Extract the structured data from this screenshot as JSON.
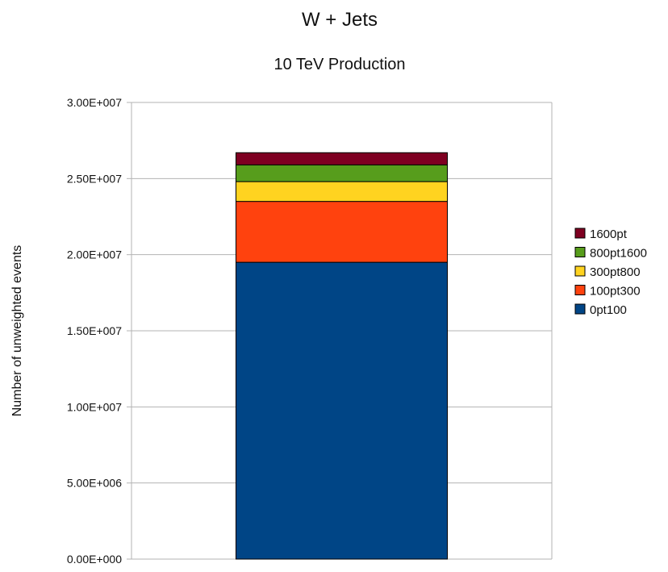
{
  "chart_data": {
    "type": "bar",
    "stacked": true,
    "title": "W + Jets",
    "subtitle": "10 TeV Production",
    "xlabel": "",
    "ylabel": "Number of unweighted events",
    "ylim": [
      0,
      30000000
    ],
    "yticks": [
      0,
      5000000,
      10000000,
      15000000,
      20000000,
      25000000,
      30000000
    ],
    "ytick_labels": [
      "0.00E+000",
      "5.00E+006",
      "1.00E+007",
      "1.50E+007",
      "2.00E+007",
      "2.50E+007",
      "3.00E+007"
    ],
    "categories": [
      ""
    ],
    "grid": {
      "horizontal": true,
      "vertical": false
    },
    "legend": {
      "position": "right"
    },
    "series": [
      {
        "name": "0pt100",
        "values": [
          19500000
        ],
        "color": "#004586"
      },
      {
        "name": "100pt300",
        "values": [
          4000000
        ],
        "color": "#ff420e"
      },
      {
        "name": "300pt800",
        "values": [
          1300000
        ],
        "color": "#ffd320"
      },
      {
        "name": "800pt1600",
        "values": [
          1100000
        ],
        "color": "#579d1c"
      },
      {
        "name": "1600pt",
        "values": [
          800000
        ],
        "color": "#7e0021"
      }
    ]
  }
}
